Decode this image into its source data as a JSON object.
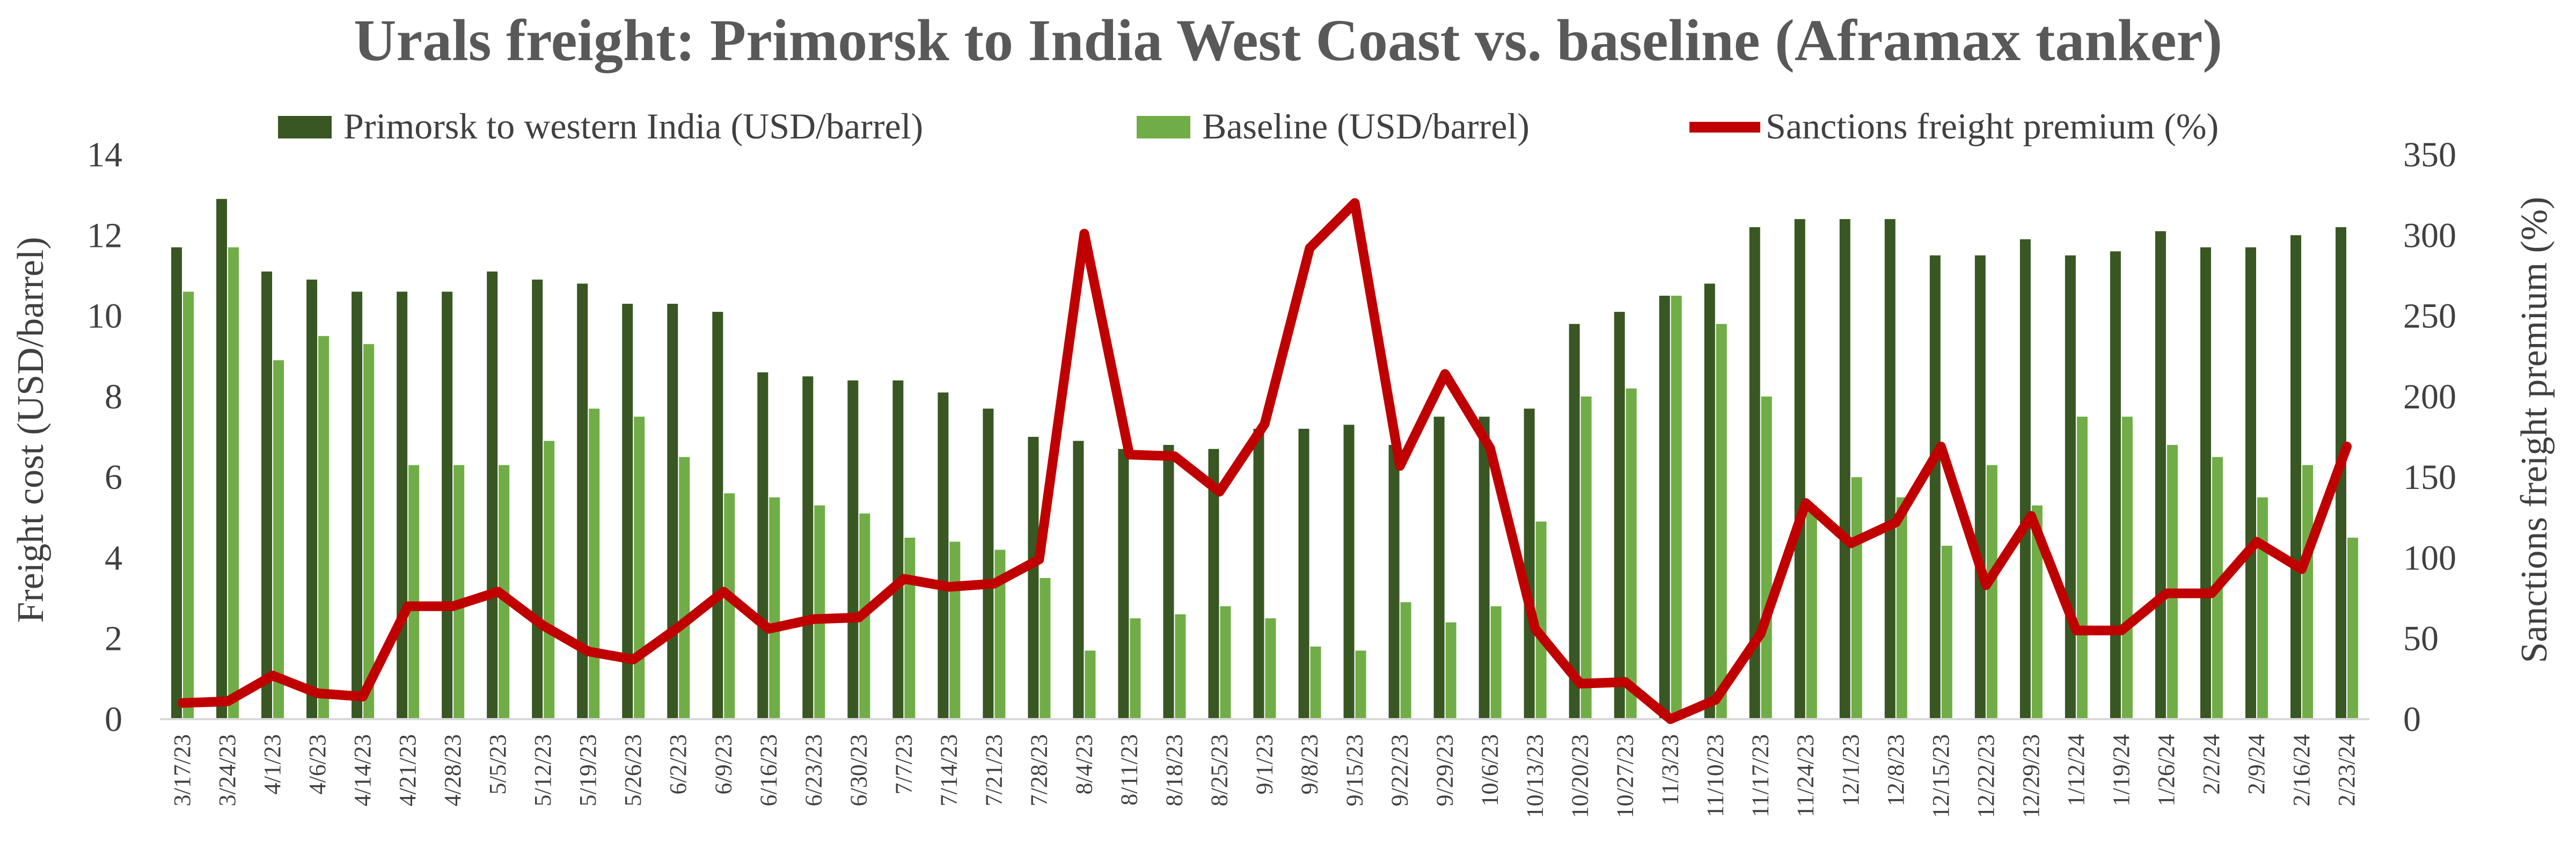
{
  "chart_data": {
    "type": "bar",
    "title": "Urals freight: Primorsk to India West Coast vs. baseline (Aframax tanker)",
    "ylabel": "Freight cost (USD/barrel)",
    "y2label": "Sanctions freight premium (%)",
    "ylim": [
      0,
      14
    ],
    "y2lim": [
      0,
      350
    ],
    "yticks": [
      0,
      2,
      4,
      6,
      8,
      10,
      12,
      14
    ],
    "y2ticks": [
      0,
      50,
      100,
      150,
      200,
      250,
      300,
      350
    ],
    "legend_position": "top",
    "grid": false,
    "categories": [
      "3/17/23",
      "3/24/23",
      "4/1/23",
      "4/6/23",
      "4/14/23",
      "4/21/23",
      "4/28/23",
      "5/5/23",
      "5/12/23",
      "5/19/23",
      "5/26/23",
      "6/2/23",
      "6/9/23",
      "6/16/23",
      "6/23/23",
      "6/30/23",
      "7/7/23",
      "7/14/23",
      "7/21/23",
      "7/28/23",
      "8/4/23",
      "8/11/23",
      "8/18/23",
      "8/25/23",
      "9/1/23",
      "9/8/23",
      "9/15/23",
      "9/22/23",
      "9/29/23",
      "10/6/23",
      "10/13/23",
      "10/20/23",
      "10/27/23",
      "11/3/23",
      "11/10/23",
      "11/17/23",
      "11/24/23",
      "12/1/23",
      "12/8/23",
      "12/15/23",
      "12/22/23",
      "12/29/23",
      "1/12/24",
      "1/19/24",
      "1/26/24",
      "2/2/24",
      "2/9/24",
      "2/16/24",
      "2/23/24"
    ],
    "series": [
      {
        "name": "Primorsk to western India (USD/barrel)",
        "type": "bar",
        "axis": "left",
        "color": "#385723",
        "values": [
          11.7,
          12.9,
          11.1,
          10.9,
          10.6,
          10.6,
          10.6,
          11.1,
          10.9,
          10.8,
          10.3,
          10.3,
          10.1,
          8.6,
          8.5,
          8.4,
          8.4,
          8.1,
          7.7,
          7.0,
          6.9,
          6.7,
          6.8,
          6.7,
          7.2,
          7.2,
          7.3,
          6.8,
          7.5,
          7.5,
          7.7,
          9.8,
          10.1,
          10.5,
          10.8,
          12.2,
          12.4,
          12.4,
          12.4,
          11.5,
          11.5,
          11.9,
          11.5,
          11.6,
          12.1,
          11.7,
          11.7,
          12.0,
          12.2
        ]
      },
      {
        "name": "Baseline (USD/barrel)",
        "type": "bar",
        "axis": "left",
        "color": "#70AD47",
        "values": [
          10.6,
          11.7,
          8.9,
          9.5,
          9.3,
          6.3,
          6.3,
          6.3,
          6.9,
          7.7,
          7.5,
          6.5,
          5.6,
          5.5,
          5.3,
          5.1,
          4.5,
          4.4,
          4.2,
          3.5,
          1.7,
          2.5,
          2.6,
          2.8,
          2.5,
          1.8,
          1.7,
          2.9,
          2.4,
          2.8,
          4.9,
          8.0,
          8.2,
          10.5,
          9.8,
          8.0,
          5.3,
          6.0,
          5.5,
          4.3,
          6.3,
          5.3,
          7.5,
          7.5,
          6.8,
          6.5,
          5.5,
          6.3,
          4.5
        ]
      },
      {
        "name": "Sanctions freight premium (%)",
        "type": "line",
        "axis": "right",
        "color": "#C00000",
        "values": [
          10,
          11,
          27,
          16,
          14,
          70,
          70,
          79,
          58,
          42,
          37,
          57,
          79,
          56,
          62,
          63,
          87,
          82,
          84,
          99,
          301,
          164,
          163,
          141,
          183,
          292,
          320,
          157,
          214,
          168,
          56,
          22,
          23,
          0,
          12,
          53,
          134,
          109,
          122,
          169,
          83,
          126,
          55,
          55,
          78,
          78,
          110,
          93,
          169
        ]
      }
    ]
  }
}
